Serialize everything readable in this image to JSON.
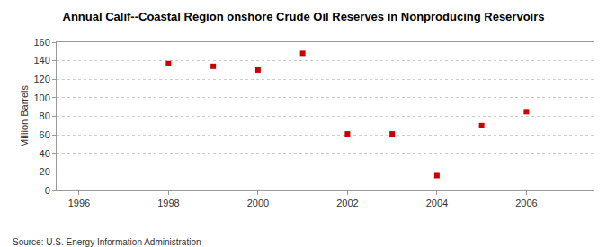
{
  "chart_data": {
    "type": "scatter",
    "title": "Annual Calif--Coastal Region onshore Crude Oil Reserves in Nonproducing Reservoirs",
    "y_label": "Million Barrels",
    "annotations": [
      "Source: U.S. Energy Information Administration"
    ],
    "x": [
      1998,
      1999,
      2000,
      2001,
      2002,
      2003,
      2004,
      2005,
      2006
    ],
    "values": [
      137,
      134,
      130,
      148,
      61,
      61,
      16,
      70,
      85
    ],
    "color": "#cc0000",
    "marker": "square",
    "xlim": [
      1995.5,
      2007.5
    ],
    "xticks": [
      1996,
      1998,
      2000,
      2002,
      2004,
      2006
    ],
    "ylim": [
      0,
      160
    ],
    "yticks": [
      0,
      20,
      40,
      60,
      80,
      100,
      120,
      140,
      160
    ],
    "grid": true
  }
}
